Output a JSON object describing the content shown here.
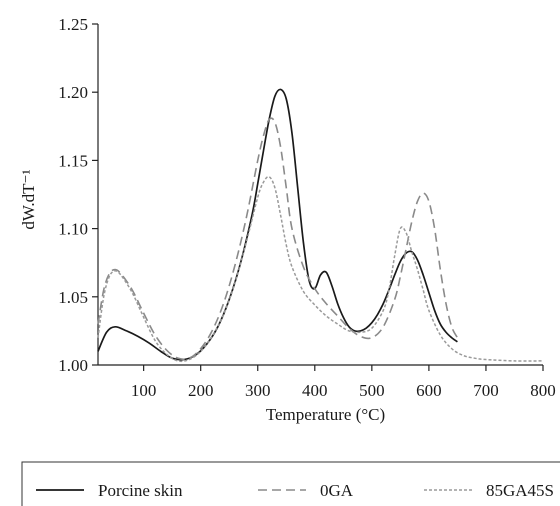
{
  "chart_data": {
    "type": "line",
    "xlabel": "Temperature (°C)",
    "ylabel": "dW.dT⁻¹",
    "xlim": [
      20,
      800
    ],
    "ylim": [
      1.0,
      1.25
    ],
    "x_ticks": [
      100,
      200,
      300,
      400,
      500,
      600,
      700,
      800
    ],
    "y_ticks": [
      1.0,
      1.05,
      1.1,
      1.15,
      1.2,
      1.25
    ],
    "y_tick_labels": [
      "1.00",
      "1.05",
      "1.10",
      "1.15",
      "1.20",
      "1.25"
    ],
    "x_tick_labels": [
      "100",
      "200",
      "300",
      "400",
      "500",
      "600",
      "700",
      "800"
    ],
    "legend_position": "bottom",
    "series": [
      {
        "name": "Porcine skin",
        "style": "solid",
        "color": "#1a1a1a",
        "x": [
          20,
          35,
          50,
          70,
          90,
          110,
          130,
          150,
          170,
          190,
          210,
          230,
          250,
          270,
          290,
          300,
          310,
          320,
          330,
          340,
          350,
          360,
          370,
          380,
          390,
          400,
          410,
          420,
          430,
          440,
          450,
          460,
          470,
          480,
          490,
          500,
          510,
          520,
          530,
          540,
          550,
          560,
          570,
          580,
          590,
          600,
          610,
          620,
          630,
          640,
          650
        ],
        "y": [
          1.01,
          1.024,
          1.028,
          1.025,
          1.021,
          1.016,
          1.01,
          1.005,
          1.004,
          1.007,
          1.015,
          1.028,
          1.048,
          1.075,
          1.11,
          1.133,
          1.157,
          1.18,
          1.197,
          1.202,
          1.195,
          1.17,
          1.13,
          1.09,
          1.062,
          1.056,
          1.066,
          1.068,
          1.058,
          1.045,
          1.035,
          1.028,
          1.025,
          1.025,
          1.027,
          1.031,
          1.037,
          1.045,
          1.055,
          1.066,
          1.076,
          1.082,
          1.083,
          1.077,
          1.066,
          1.053,
          1.04,
          1.03,
          1.024,
          1.02,
          1.017
        ]
      },
      {
        "name": "0GA",
        "style": "dashed",
        "color": "#8a8a8a",
        "x": [
          20,
          30,
          40,
          50,
          60,
          80,
          100,
          120,
          140,
          160,
          180,
          200,
          220,
          240,
          260,
          280,
          300,
          310,
          320,
          330,
          340,
          350,
          360,
          380,
          400,
          420,
          440,
          460,
          480,
          500,
          520,
          540,
          550,
          560,
          570,
          580,
          590,
          600,
          610,
          620,
          630,
          640,
          650
        ],
        "y": [
          1.03,
          1.055,
          1.067,
          1.07,
          1.067,
          1.055,
          1.038,
          1.022,
          1.011,
          1.005,
          1.005,
          1.012,
          1.025,
          1.045,
          1.073,
          1.108,
          1.15,
          1.168,
          1.18,
          1.178,
          1.16,
          1.13,
          1.1,
          1.072,
          1.056,
          1.045,
          1.036,
          1.027,
          1.021,
          1.02,
          1.028,
          1.048,
          1.065,
          1.085,
          1.105,
          1.12,
          1.126,
          1.12,
          1.1,
          1.07,
          1.045,
          1.028,
          1.02
        ]
      },
      {
        "name": "85GA45S",
        "style": "dotted",
        "color": "#9a9a9a",
        "x": [
          20,
          30,
          40,
          50,
          60,
          80,
          100,
          120,
          140,
          160,
          180,
          200,
          220,
          240,
          260,
          280,
          300,
          310,
          320,
          330,
          340,
          350,
          360,
          380,
          400,
          420,
          440,
          460,
          480,
          500,
          520,
          530,
          540,
          550,
          560,
          570,
          580,
          590,
          600,
          620,
          640,
          660,
          680,
          700,
          750,
          800
        ],
        "y": [
          1.02,
          1.05,
          1.065,
          1.069,
          1.066,
          1.053,
          1.035,
          1.018,
          1.008,
          1.003,
          1.004,
          1.01,
          1.021,
          1.037,
          1.06,
          1.09,
          1.123,
          1.134,
          1.138,
          1.13,
          1.11,
          1.088,
          1.072,
          1.054,
          1.044,
          1.036,
          1.03,
          1.025,
          1.024,
          1.027,
          1.04,
          1.055,
          1.08,
          1.1,
          1.097,
          1.083,
          1.07,
          1.055,
          1.04,
          1.022,
          1.012,
          1.007,
          1.005,
          1.004,
          1.003,
          1.003
        ]
      }
    ]
  }
}
